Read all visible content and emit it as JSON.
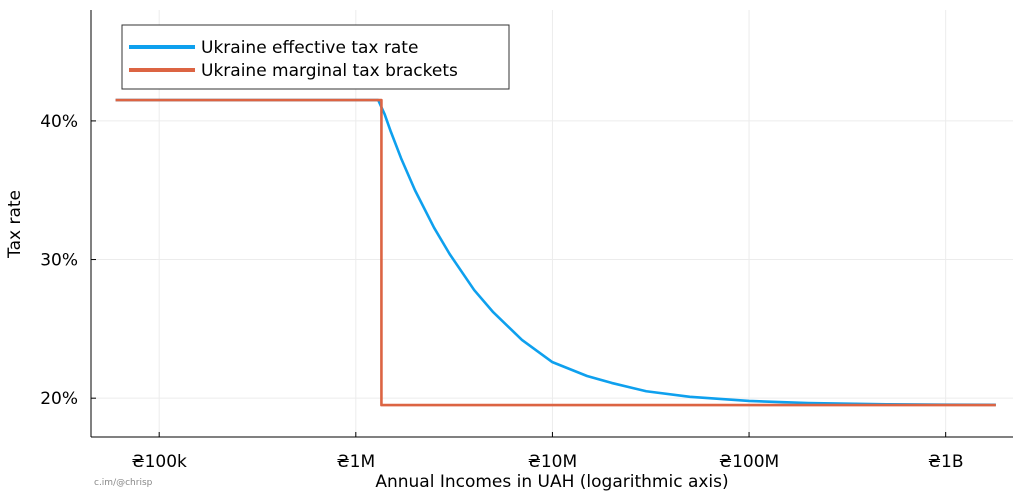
{
  "chart_data": {
    "type": "line",
    "title": "",
    "xlabel": "Annual Incomes in UAH (logarithmic axis)",
    "ylabel": "Tax rate",
    "xscale": "log10",
    "xlim": [
      45000,
      2200000000
    ],
    "ylim": [
      17.2,
      48.0
    ],
    "grid": true,
    "legend_position": "top-left",
    "x_ticks": [
      {
        "value": 100000,
        "label": "₴100k"
      },
      {
        "value": 1000000,
        "label": "₴1M"
      },
      {
        "value": 10000000,
        "label": "₴10M"
      },
      {
        "value": 100000000,
        "label": "₴100M"
      },
      {
        "value": 1000000000,
        "label": "₴1B"
      }
    ],
    "y_ticks": [
      {
        "value": 20,
        "label": "20%"
      },
      {
        "value": 30,
        "label": "30%"
      },
      {
        "value": 40,
        "label": "40%"
      }
    ],
    "series": [
      {
        "name": "Ukraine effective tax rate",
        "color": "#0ea0ee",
        "points": [
          [
            60000,
            41.5
          ],
          [
            1000000,
            41.5
          ],
          [
            1300000,
            41.5
          ],
          [
            1400000,
            40.5
          ],
          [
            1500000,
            39.3
          ],
          [
            1700000,
            37.3
          ],
          [
            2000000,
            35.0
          ],
          [
            2500000,
            32.3
          ],
          [
            3000000,
            30.4
          ],
          [
            4000000,
            27.8
          ],
          [
            5000000,
            26.2
          ],
          [
            7000000,
            24.2
          ],
          [
            10000000,
            22.6
          ],
          [
            15000000,
            21.6
          ],
          [
            20000000,
            21.1
          ],
          [
            30000000,
            20.5
          ],
          [
            50000000,
            20.1
          ],
          [
            100000000,
            19.8
          ],
          [
            200000000,
            19.65
          ],
          [
            500000000,
            19.56
          ],
          [
            1000000000,
            19.53
          ],
          [
            1800000000,
            19.52
          ]
        ]
      },
      {
        "name": "Ukraine marginal tax brackets",
        "color": "#dc6443",
        "points": [
          [
            60000,
            41.5
          ],
          [
            1350000,
            41.5
          ],
          [
            1350000,
            19.5
          ],
          [
            1800000000,
            19.5
          ]
        ]
      }
    ]
  },
  "credit": "c.im/@chrisp"
}
